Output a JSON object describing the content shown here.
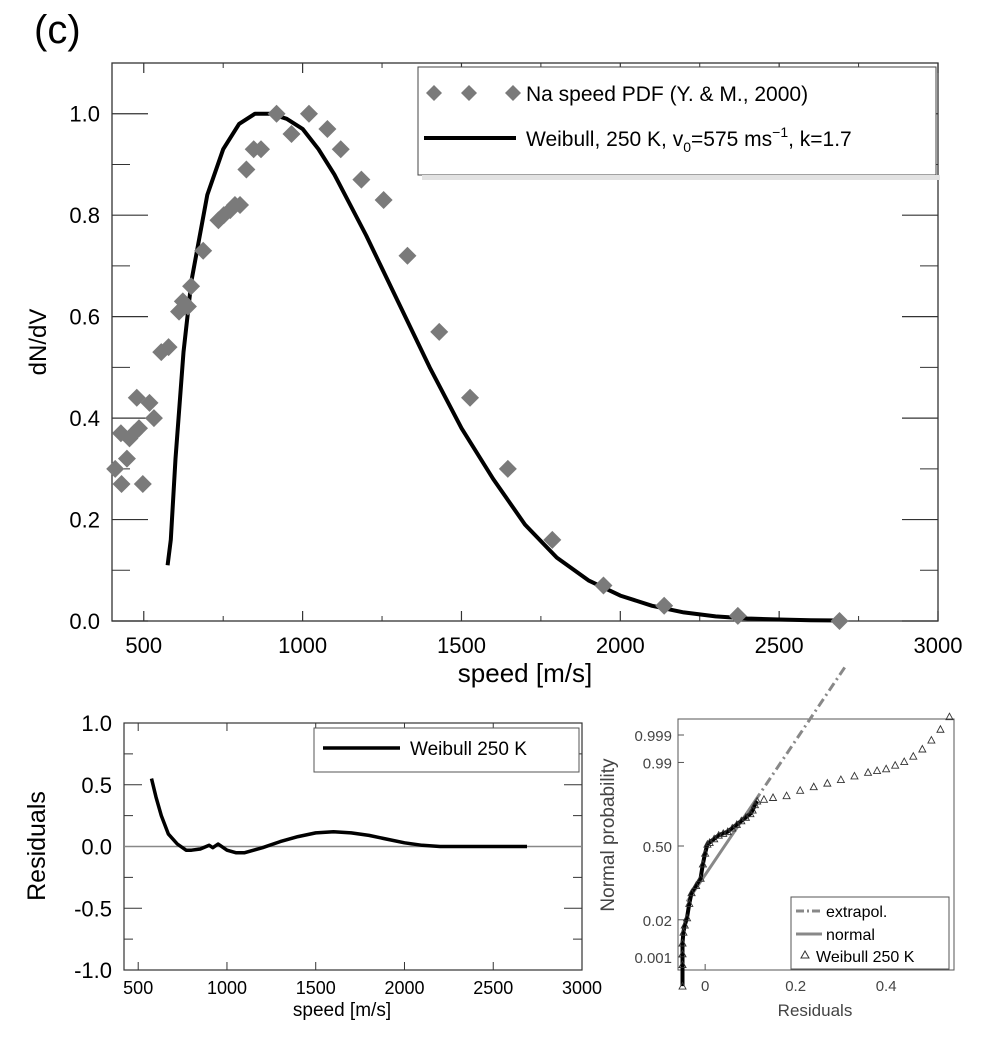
{
  "panel_label": "(c)",
  "colors": {
    "data_marker": "#7a7a7a",
    "model_line": "#000000",
    "gray_line": "#888888"
  },
  "chart_data": [
    {
      "id": "main",
      "type": "scatter+line",
      "xlabel": "speed [m/s]",
      "ylabel": "dN/dV",
      "xlim": [
        400,
        3000
      ],
      "ylim": [
        0,
        1.1
      ],
      "x_ticks": [
        500,
        1000,
        1500,
        2000,
        2500,
        3000
      ],
      "x_tick_labels": [
        "500",
        "1000",
        "1500",
        "2000",
        "2500",
        "3000"
      ],
      "y_ticks": [
        0.0,
        0.2,
        0.4,
        0.6,
        0.8,
        1.0
      ],
      "y_tick_labels": [
        "0.0",
        "0.2",
        "0.4",
        "0.6",
        "0.8",
        "1.0"
      ],
      "legend": {
        "position": "top-right",
        "entries": [
          {
            "label": "Na speed PDF (Y. & M., 2000)",
            "style": "diamond"
          },
          {
            "label_parts": [
              "Weibull, 250 K, v",
              "0",
              "=575 ms",
              "−1",
              ", k=1.7"
            ],
            "style": "line"
          }
        ]
      },
      "scatter_series": {
        "name": "Na speed PDF (Y. & M., 2000)",
        "x": [
          410,
          428,
          430,
          447,
          455,
          469,
          478,
          485,
          497,
          518,
          532,
          555,
          578,
          611,
          623,
          628,
          639,
          649,
          687,
          735,
          752,
          772,
          787,
          803,
          823,
          846,
          869,
          918,
          965,
          1020,
          1078,
          1120,
          1185,
          1255,
          1330,
          1430,
          1527,
          1646,
          1786,
          1947,
          2138,
          2370,
          2690
        ],
        "y": [
          0.3,
          0.37,
          0.27,
          0.32,
          0.36,
          0.37,
          0.44,
          0.38,
          0.27,
          0.43,
          0.4,
          0.53,
          0.54,
          0.61,
          0.63,
          0.62,
          0.62,
          0.66,
          0.73,
          0.79,
          0.8,
          0.81,
          0.82,
          0.82,
          0.89,
          0.93,
          0.93,
          1.0,
          0.96,
          1.0,
          0.97,
          0.93,
          0.87,
          0.83,
          0.72,
          0.57,
          0.44,
          0.3,
          0.16,
          0.07,
          0.03,
          0.01,
          0.0
        ]
      },
      "line_series": {
        "name": "Weibull, 250 K, v0=575 ms−1, k=1.7",
        "x": [
          575,
          585,
          600,
          625,
          650,
          700,
          750,
          800,
          850,
          900,
          950,
          1000,
          1050,
          1100,
          1150,
          1200,
          1300,
          1400,
          1500,
          1600,
          1700,
          1800,
          1900,
          2000,
          2100,
          2200,
          2300,
          2400,
          2500,
          2600,
          2700
        ],
        "y": [
          0.11,
          0.16,
          0.32,
          0.53,
          0.67,
          0.84,
          0.93,
          0.98,
          1.0,
          1.0,
          0.99,
          0.97,
          0.93,
          0.88,
          0.82,
          0.76,
          0.63,
          0.5,
          0.38,
          0.28,
          0.19,
          0.125,
          0.08,
          0.05,
          0.03,
          0.017,
          0.009,
          0.005,
          0.003,
          0.0015,
          0.001
        ]
      }
    },
    {
      "id": "residuals",
      "type": "line",
      "xlabel": "speed [m/s]",
      "ylabel": "Residuals",
      "xlim": [
        420,
        3000
      ],
      "ylim": [
        -1.0,
        1.0
      ],
      "x_ticks": [
        500,
        1000,
        1500,
        2000,
        2500,
        3000
      ],
      "x_tick_labels": [
        "500",
        "1000",
        "1500",
        "2000",
        "2500",
        "3000"
      ],
      "y_ticks": [
        -1.0,
        -0.5,
        0.0,
        0.5,
        1.0
      ],
      "y_tick_labels": [
        "-1.0",
        "-0.5",
        "0.0",
        "0.5",
        "1.0"
      ],
      "legend": {
        "position": "top-right",
        "entries": [
          {
            "label": "Weibull 250 K",
            "style": "line"
          }
        ]
      },
      "series": [
        {
          "name": "Weibull 250 K",
          "x": [
            575,
            600,
            630,
            670,
            720,
            770,
            800,
            850,
            900,
            920,
            950,
            980,
            1000,
            1050,
            1100,
            1150,
            1200,
            1300,
            1400,
            1500,
            1600,
            1700,
            1800,
            1900,
            2000,
            2100,
            2200,
            2300,
            2400,
            2500,
            2600,
            2690
          ],
          "y": [
            0.55,
            0.4,
            0.25,
            0.1,
            0.02,
            -0.03,
            -0.03,
            -0.02,
            0.01,
            -0.01,
            0.02,
            -0.01,
            -0.03,
            -0.05,
            -0.05,
            -0.03,
            -0.01,
            0.04,
            0.08,
            0.11,
            0.12,
            0.11,
            0.09,
            0.06,
            0.03,
            0.01,
            0.0,
            0.0,
            0.0,
            0.0,
            0.0,
            0.0
          ]
        }
      ],
      "zero_line": 0
    },
    {
      "id": "normal-probability",
      "type": "scatter+line",
      "xlabel": "Residuals",
      "ylabel": "Normal probability",
      "xlim": [
        -0.06,
        0.55
      ],
      "y_scale": "probit",
      "x_ticks": [
        0,
        0.2,
        0.4
      ],
      "x_tick_labels": [
        "0",
        "0.2",
        "0.4"
      ],
      "y_ticks": [
        0.001,
        0.02,
        0.5,
        0.99,
        0.999
      ],
      "y_tick_labels": [
        "0.001",
        "0.02",
        "0.50",
        "0.99",
        "0.999"
      ],
      "legend": {
        "position": "bottom-right",
        "entries": [
          {
            "label": "extrapol.",
            "style": "dashdot"
          },
          {
            "label": "normal",
            "style": "line"
          },
          {
            "label": "Weibull 250 K",
            "style": "triangle"
          }
        ]
      },
      "normal_line": {
        "name": "normal",
        "x": [
          -0.04,
          0.11
        ],
        "z": [
          -1.55,
          1.25
        ]
      },
      "extrapol_line": {
        "name": "extrapol.",
        "x": [
          0.11,
          0.31
        ],
        "z": [
          1.25,
          5.0
        ]
      },
      "weibull_points": {
        "name": "Weibull 250 K",
        "x": [
          -0.05,
          -0.05,
          -0.05,
          -0.05,
          -0.048,
          -0.045,
          -0.04,
          -0.035,
          -0.03,
          -0.02,
          -0.01,
          -0.005,
          0.0,
          0.005,
          0.01,
          0.02,
          0.03,
          0.04,
          0.05,
          0.06,
          0.07,
          0.08,
          0.09,
          0.1,
          0.105,
          0.11,
          0.115,
          0.13,
          0.15,
          0.18,
          0.21,
          0.24,
          0.27,
          0.3,
          0.33,
          0.36,
          0.38,
          0.4,
          0.42,
          0.44,
          0.46,
          0.48,
          0.5,
          0.52,
          0.54
        ],
        "z": [
          -3.9,
          -3.3,
          -3.0,
          -2.7,
          -2.4,
          -2.2,
          -2.0,
          -1.6,
          -1.3,
          -1.1,
          -0.9,
          -0.5,
          -0.2,
          0.05,
          0.1,
          0.2,
          0.3,
          0.35,
          0.4,
          0.5,
          0.6,
          0.7,
          0.8,
          0.9,
          1.0,
          1.15,
          1.25,
          1.3,
          1.35,
          1.4,
          1.55,
          1.65,
          1.75,
          1.85,
          1.95,
          2.05,
          2.1,
          2.15,
          2.25,
          2.35,
          2.5,
          2.7,
          2.95,
          3.25,
          3.6
        ]
      }
    }
  ]
}
